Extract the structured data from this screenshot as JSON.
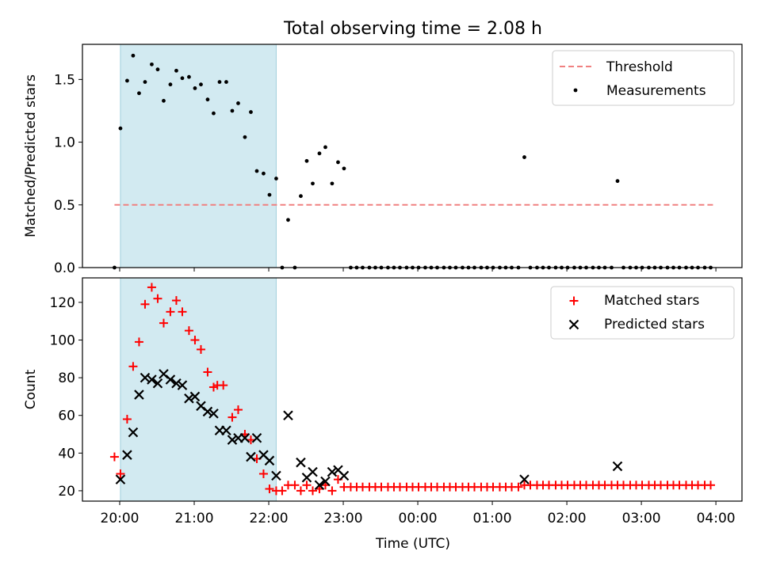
{
  "figure_title": "Total observing time = 2.08 h",
  "colors": {
    "threshold": "#f08080",
    "measurement": "#000000",
    "matched": "#ff0000",
    "predicted": "#000000",
    "shade": "#add8e6"
  },
  "chart_data": [
    {
      "type": "scatter",
      "title": "Total observing time = 2.08 h",
      "xlabel": "",
      "ylabel": "Matched/Predicted stars",
      "xlim": [
        -0.5,
        8.35
      ],
      "ylim": [
        0,
        1.78
      ],
      "y_ticks": [
        0.0,
        0.5,
        1.0,
        1.5
      ],
      "y_tick_labels": [
        "0.0",
        "0.5",
        "1.0",
        "1.5"
      ],
      "x_ticks": [
        0,
        1,
        2,
        3,
        4,
        5,
        6,
        7,
        8
      ],
      "shaded_region_hours": [
        0.01,
        2.1
      ],
      "grid": false,
      "legend_position": "top-right",
      "threshold": {
        "name": "Threshold",
        "value": 0.5,
        "x_range": [
          -0.07,
          7.97
        ],
        "style": "dashed"
      },
      "series": [
        {
          "name": "Measurements",
          "marker": "dot",
          "points": [
            [
              -0.07,
              0.0
            ],
            [
              0.01,
              1.11
            ],
            [
              0.1,
              1.49
            ],
            [
              0.18,
              1.69
            ],
            [
              0.26,
              1.39
            ],
            [
              0.34,
              1.48
            ],
            [
              0.43,
              1.62
            ],
            [
              0.51,
              1.58
            ],
            [
              0.59,
              1.33
            ],
            [
              0.68,
              1.46
            ],
            [
              0.76,
              1.57
            ],
            [
              0.84,
              1.51
            ],
            [
              0.93,
              1.52
            ],
            [
              1.01,
              1.43
            ],
            [
              1.09,
              1.46
            ],
            [
              1.18,
              1.34
            ],
            [
              1.26,
              1.23
            ],
            [
              1.34,
              1.48
            ],
            [
              1.43,
              1.48
            ],
            [
              1.51,
              1.25
            ],
            [
              1.59,
              1.31
            ],
            [
              1.68,
              1.04
            ],
            [
              1.76,
              1.24
            ],
            [
              1.84,
              0.77
            ],
            [
              1.93,
              0.75
            ],
            [
              2.01,
              0.58
            ],
            [
              2.1,
              0.71
            ],
            [
              2.18,
              0.0
            ],
            [
              2.26,
              0.38
            ],
            [
              2.35,
              0.0
            ],
            [
              2.43,
              0.57
            ],
            [
              2.51,
              0.85
            ],
            [
              2.59,
              0.67
            ],
            [
              2.68,
              0.91
            ],
            [
              2.76,
              0.96
            ],
            [
              2.85,
              0.67
            ],
            [
              2.93,
              0.84
            ],
            [
              3.01,
              0.79
            ],
            [
              3.1,
              0.0
            ],
            [
              3.18,
              0.0
            ],
            [
              3.26,
              0.0
            ],
            [
              3.35,
              0.0
            ],
            [
              3.43,
              0.0
            ],
            [
              3.51,
              0.0
            ],
            [
              3.6,
              0.0
            ],
            [
              3.68,
              0.0
            ],
            [
              3.76,
              0.0
            ],
            [
              3.85,
              0.0
            ],
            [
              3.93,
              0.0
            ],
            [
              4.01,
              0.0
            ],
            [
              4.1,
              0.0
            ],
            [
              4.18,
              0.0
            ],
            [
              4.26,
              0.0
            ],
            [
              4.35,
              0.0
            ],
            [
              4.43,
              0.0
            ],
            [
              4.51,
              0.0
            ],
            [
              4.6,
              0.0
            ],
            [
              4.68,
              0.0
            ],
            [
              4.76,
              0.0
            ],
            [
              4.85,
              0.0
            ],
            [
              4.93,
              0.0
            ],
            [
              5.01,
              0.0
            ],
            [
              5.1,
              0.0
            ],
            [
              5.18,
              0.0
            ],
            [
              5.26,
              0.0
            ],
            [
              5.35,
              0.0
            ],
            [
              5.43,
              0.88
            ],
            [
              5.51,
              0.0
            ],
            [
              5.6,
              0.0
            ],
            [
              5.68,
              0.0
            ],
            [
              5.76,
              0.0
            ],
            [
              5.85,
              0.0
            ],
            [
              5.93,
              0.0
            ],
            [
              6.01,
              0.0
            ],
            [
              6.1,
              0.0
            ],
            [
              6.18,
              0.0
            ],
            [
              6.26,
              0.0
            ],
            [
              6.35,
              0.0
            ],
            [
              6.43,
              0.0
            ],
            [
              6.51,
              0.0
            ],
            [
              6.6,
              0.0
            ],
            [
              6.68,
              0.69
            ],
            [
              6.76,
              0.0
            ],
            [
              6.85,
              0.0
            ],
            [
              6.93,
              0.0
            ],
            [
              7.01,
              0.0
            ],
            [
              7.1,
              0.0
            ],
            [
              7.18,
              0.0
            ],
            [
              7.26,
              0.0
            ],
            [
              7.35,
              0.0
            ],
            [
              7.43,
              0.0
            ],
            [
              7.51,
              0.0
            ],
            [
              7.6,
              0.0
            ],
            [
              7.68,
              0.0
            ],
            [
              7.76,
              0.0
            ],
            [
              7.85,
              0.0
            ],
            [
              7.93,
              0.0
            ]
          ]
        }
      ]
    },
    {
      "type": "scatter",
      "title": "",
      "xlabel": "Time (UTC)",
      "ylabel": "Count",
      "xlim": [
        -0.5,
        8.35
      ],
      "ylim": [
        14.5,
        133
      ],
      "y_ticks": [
        20,
        40,
        60,
        80,
        100,
        120
      ],
      "y_tick_labels": [
        "20",
        "40",
        "60",
        "80",
        "100",
        "120"
      ],
      "x_ticks": [
        0,
        1,
        2,
        3,
        4,
        5,
        6,
        7,
        8
      ],
      "x_tick_labels": [
        "20:00",
        "21:00",
        "22:00",
        "23:00",
        "00:00",
        "01:00",
        "02:00",
        "03:00",
        "04:00"
      ],
      "shaded_region_hours": [
        0.01,
        2.1
      ],
      "grid": false,
      "legend_position": "top-right",
      "series": [
        {
          "name": "Matched stars",
          "marker": "plus",
          "points": [
            [
              -0.07,
              38
            ],
            [
              0.01,
              29
            ],
            [
              0.1,
              58
            ],
            [
              0.18,
              86
            ],
            [
              0.26,
              99
            ],
            [
              0.34,
              119
            ],
            [
              0.43,
              128
            ],
            [
              0.51,
              122
            ],
            [
              0.59,
              109
            ],
            [
              0.68,
              115
            ],
            [
              0.76,
              121
            ],
            [
              0.84,
              115
            ],
            [
              0.93,
              105
            ],
            [
              1.01,
              100
            ],
            [
              1.09,
              95
            ],
            [
              1.18,
              83
            ],
            [
              1.26,
              75
            ],
            [
              1.31,
              76
            ],
            [
              1.39,
              76
            ],
            [
              1.51,
              59
            ],
            [
              1.59,
              63
            ],
            [
              1.68,
              50
            ],
            [
              1.76,
              47
            ],
            [
              1.84,
              37
            ],
            [
              1.93,
              29
            ],
            [
              2.01,
              21
            ],
            [
              2.1,
              20
            ],
            [
              2.18,
              20
            ],
            [
              2.26,
              23
            ],
            [
              2.35,
              23
            ],
            [
              2.43,
              20
            ],
            [
              2.51,
              23
            ],
            [
              2.59,
              20
            ],
            [
              2.68,
              21
            ],
            [
              2.76,
              23
            ],
            [
              2.85,
              20
            ],
            [
              2.93,
              26
            ],
            [
              3.01,
              22
            ],
            [
              3.1,
              22
            ],
            [
              3.18,
              22
            ],
            [
              3.26,
              22
            ],
            [
              3.35,
              22
            ],
            [
              3.43,
              22
            ],
            [
              3.51,
              22
            ],
            [
              3.6,
              22
            ],
            [
              3.68,
              22
            ],
            [
              3.76,
              22
            ],
            [
              3.85,
              22
            ],
            [
              3.93,
              22
            ],
            [
              4.01,
              22
            ],
            [
              4.1,
              22
            ],
            [
              4.18,
              22
            ],
            [
              4.26,
              22
            ],
            [
              4.35,
              22
            ],
            [
              4.43,
              22
            ],
            [
              4.51,
              22
            ],
            [
              4.6,
              22
            ],
            [
              4.68,
              22
            ],
            [
              4.76,
              22
            ],
            [
              4.85,
              22
            ],
            [
              4.93,
              22
            ],
            [
              5.01,
              22
            ],
            [
              5.1,
              22
            ],
            [
              5.18,
              22
            ],
            [
              5.26,
              22
            ],
            [
              5.35,
              22
            ],
            [
              5.43,
              23
            ],
            [
              5.51,
              23
            ],
            [
              5.6,
              23
            ],
            [
              5.68,
              23
            ],
            [
              5.76,
              23
            ],
            [
              5.85,
              23
            ],
            [
              5.93,
              23
            ],
            [
              6.01,
              23
            ],
            [
              6.1,
              23
            ],
            [
              6.18,
              23
            ],
            [
              6.26,
              23
            ],
            [
              6.35,
              23
            ],
            [
              6.43,
              23
            ],
            [
              6.51,
              23
            ],
            [
              6.6,
              23
            ],
            [
              6.68,
              23
            ],
            [
              6.76,
              23
            ],
            [
              6.85,
              23
            ],
            [
              6.93,
              23
            ],
            [
              7.01,
              23
            ],
            [
              7.1,
              23
            ],
            [
              7.18,
              23
            ],
            [
              7.26,
              23
            ],
            [
              7.35,
              23
            ],
            [
              7.43,
              23
            ],
            [
              7.51,
              23
            ],
            [
              7.6,
              23
            ],
            [
              7.68,
              23
            ],
            [
              7.76,
              23
            ],
            [
              7.85,
              23
            ],
            [
              7.93,
              23
            ]
          ]
        },
        {
          "name": "Predicted stars",
          "marker": "x",
          "points": [
            [
              0.01,
              26
            ],
            [
              0.1,
              39
            ],
            [
              0.18,
              51
            ],
            [
              0.26,
              71
            ],
            [
              0.34,
              80
            ],
            [
              0.43,
              79
            ],
            [
              0.51,
              77
            ],
            [
              0.59,
              82
            ],
            [
              0.68,
              79
            ],
            [
              0.76,
              77
            ],
            [
              0.84,
              76
            ],
            [
              0.93,
              69
            ],
            [
              1.01,
              70
            ],
            [
              1.09,
              65
            ],
            [
              1.18,
              62
            ],
            [
              1.26,
              61
            ],
            [
              1.34,
              52
            ],
            [
              1.43,
              52
            ],
            [
              1.51,
              47
            ],
            [
              1.59,
              48
            ],
            [
              1.68,
              48
            ],
            [
              1.76,
              38
            ],
            [
              1.84,
              48
            ],
            [
              1.93,
              39
            ],
            [
              2.01,
              36
            ],
            [
              2.1,
              28
            ],
            [
              2.26,
              60
            ],
            [
              2.43,
              35
            ],
            [
              2.51,
              27
            ],
            [
              2.59,
              30
            ],
            [
              2.68,
              23
            ],
            [
              2.76,
              25
            ],
            [
              2.85,
              30
            ],
            [
              2.93,
              31
            ],
            [
              3.01,
              28
            ],
            [
              5.43,
              26
            ],
            [
              6.68,
              33
            ]
          ]
        }
      ]
    }
  ]
}
